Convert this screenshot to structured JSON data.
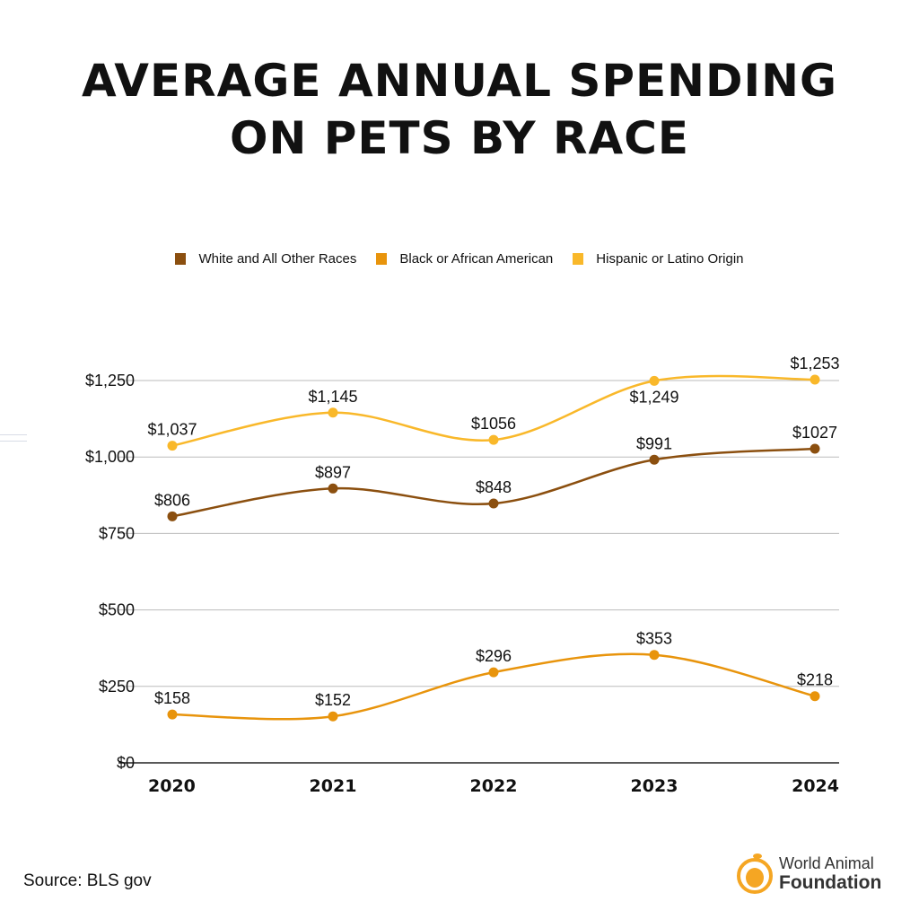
{
  "title_line1": "AVERAGE ANNUAL SPENDING",
  "title_line2": "ON PETS BY RACE",
  "source": "Source: BLS gov",
  "logo": {
    "line1": "World Animal",
    "line2": "Foundation",
    "color": "#F5A623"
  },
  "chart_data": {
    "type": "line",
    "categories": [
      "2020",
      "2021",
      "2022",
      "2023",
      "2024"
    ],
    "ylim": [
      0,
      1250
    ],
    "yticks": [
      0,
      250,
      500,
      750,
      1000,
      1250
    ],
    "ytick_labels": [
      "$0",
      "$250",
      "$500",
      "$750",
      "$1,000",
      "$1,250"
    ],
    "grid": true,
    "legend_position": "top",
    "series": [
      {
        "name": "White and All Other Races",
        "color": "#8B4F0F",
        "values": [
          806,
          897,
          848,
          991,
          1027
        ],
        "labels": [
          "$806",
          "$897",
          "$848",
          "$991",
          "$1027"
        ]
      },
      {
        "name": "Black or African American",
        "color": "#E8940C",
        "values": [
          158,
          152,
          296,
          353,
          218
        ],
        "labels": [
          "$158",
          "$152",
          "$296",
          "$353",
          "$218"
        ]
      },
      {
        "name": "Hispanic or Latino Origin",
        "color": "#F9B82A",
        "values": [
          1037,
          1145,
          1056,
          1249,
          1253
        ],
        "labels": [
          "$1,037",
          "$1,145",
          "$1056",
          "$1,249",
          "$1,253"
        ]
      }
    ]
  }
}
